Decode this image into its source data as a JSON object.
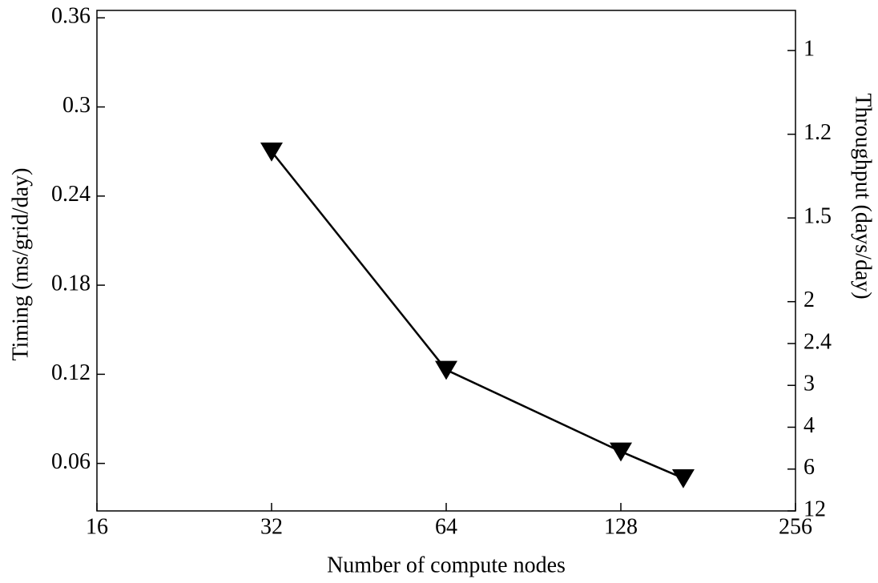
{
  "chart_data": {
    "type": "line",
    "xlabel": "Number of compute nodes",
    "ylabel": "Timing (ms/grid/day)",
    "y2label": "Throughput (days/day)",
    "x": [
      32,
      64,
      128,
      164
    ],
    "values": [
      0.27,
      0.123,
      0.068,
      0.05
    ],
    "color": "#000000",
    "marker": "triangle-down",
    "xscale": "log",
    "xlim": [
      16,
      256
    ],
    "xticks": [
      16,
      32,
      64,
      128,
      256
    ],
    "ylim": [
      0.028,
      0.365
    ],
    "yticks": [
      0.06,
      0.12,
      0.18,
      0.24,
      0.3,
      0.36
    ],
    "y2scale": "reciprocal",
    "y2lim": [
      0.926,
      12
    ],
    "y2ticks": [
      1,
      1.2,
      1.5,
      2,
      2.4,
      3,
      4,
      6,
      12
    ],
    "grid": false
  }
}
